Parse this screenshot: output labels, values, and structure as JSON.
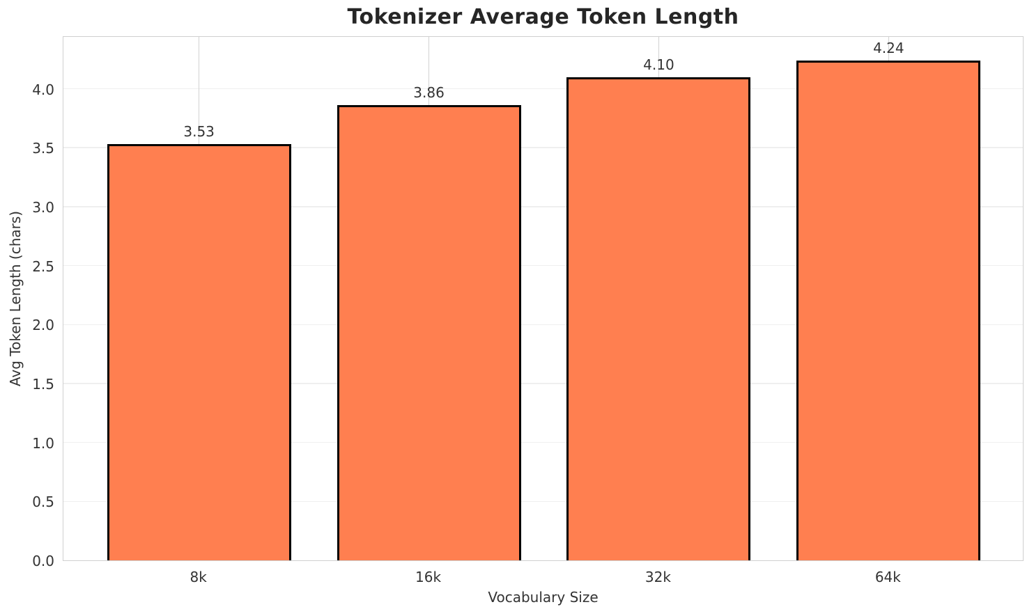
{
  "colors": {
    "bar_fill": "#FF7F50",
    "bar_edge": "#000000",
    "grid_horizontal": "#efefef",
    "grid_vertical": "#d2d2d2",
    "spine": "#cfcfcf",
    "text": "#333333",
    "title": "#262626"
  },
  "chart_data": {
    "type": "bar",
    "title": "Tokenizer Average Token Length",
    "xlabel": "Vocabulary Size",
    "ylabel": "Avg Token Length (chars)",
    "categories": [
      "8k",
      "16k",
      "32k",
      "64k"
    ],
    "values": [
      3.53,
      3.86,
      4.1,
      4.24
    ],
    "value_labels": [
      "3.53",
      "3.86",
      "4.10",
      "4.24"
    ],
    "yticks": [
      0.0,
      0.5,
      1.0,
      1.5,
      2.0,
      2.5,
      3.0,
      3.5,
      4.0
    ],
    "ytick_labels": [
      "0.0",
      "0.5",
      "1.0",
      "1.5",
      "2.0",
      "2.5",
      "3.0",
      "3.5",
      "4.0"
    ],
    "ylim": [
      0,
      4.452
    ],
    "grid": true,
    "legend_position": "none",
    "bar_relative_width": 0.8
  }
}
